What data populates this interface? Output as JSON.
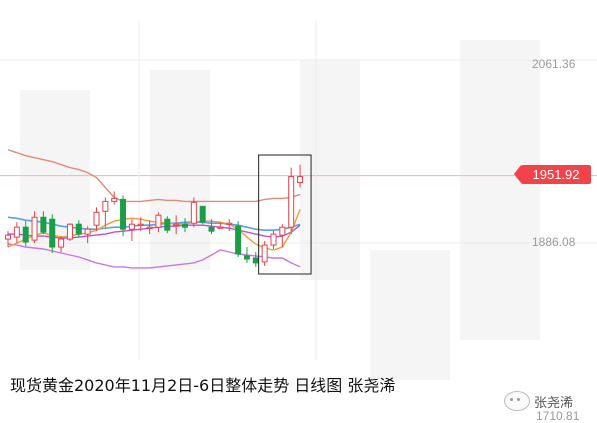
{
  "caption": "现货黄金2020年11月2日-6日整体走势 日线图 张尧浠",
  "watermark": "张尧浠",
  "colors": {
    "up": "#e8414b",
    "down": "#1a9e47",
    "upper_band": "#e28a77",
    "lower_band": "#c677e8",
    "ma_orange": "#f59a35",
    "ma_blue": "#5a9fe8",
    "ma_purple": "#c04fd6",
    "current_tag": "#f2424a",
    "highlight_box": "#222222"
  },
  "chart_data": {
    "type": "candlestick",
    "price_axis_labels": [
      "2061.36",
      "1951.92",
      "1886.08",
      "1710.81"
    ],
    "current_price": "1951.92",
    "ylim": [
      1710.81,
      2061.36
    ],
    "candles": [
      {
        "o": 1888,
        "h": 1896,
        "l": 1880,
        "c": 1892
      },
      {
        "o": 1890,
        "h": 1905,
        "l": 1884,
        "c": 1900
      },
      {
        "o": 1900,
        "h": 1906,
        "l": 1881,
        "c": 1885
      },
      {
        "o": 1887,
        "h": 1916,
        "l": 1884,
        "c": 1910
      },
      {
        "o": 1910,
        "h": 1916,
        "l": 1893,
        "c": 1895
      },
      {
        "o": 1908,
        "h": 1913,
        "l": 1874,
        "c": 1880
      },
      {
        "o": 1880,
        "h": 1891,
        "l": 1875,
        "c": 1888
      },
      {
        "o": 1888,
        "h": 1904,
        "l": 1886,
        "c": 1903
      },
      {
        "o": 1903,
        "h": 1907,
        "l": 1890,
        "c": 1893
      },
      {
        "o": 1893,
        "h": 1901,
        "l": 1884,
        "c": 1898
      },
      {
        "o": 1902,
        "h": 1920,
        "l": 1896,
        "c": 1915
      },
      {
        "o": 1916,
        "h": 1930,
        "l": 1900,
        "c": 1926
      },
      {
        "o": 1926,
        "h": 1936,
        "l": 1923,
        "c": 1929
      },
      {
        "o": 1928,
        "h": 1932,
        "l": 1891,
        "c": 1898
      },
      {
        "o": 1898,
        "h": 1908,
        "l": 1886,
        "c": 1903
      },
      {
        "o": 1903,
        "h": 1910,
        "l": 1896,
        "c": 1903
      },
      {
        "o": 1900,
        "h": 1907,
        "l": 1893,
        "c": 1900
      },
      {
        "o": 1900,
        "h": 1915,
        "l": 1895,
        "c": 1912
      },
      {
        "o": 1908,
        "h": 1911,
        "l": 1894,
        "c": 1897
      },
      {
        "o": 1902,
        "h": 1912,
        "l": 1893,
        "c": 1903
      },
      {
        "o": 1903,
        "h": 1909,
        "l": 1895,
        "c": 1900
      },
      {
        "o": 1904,
        "h": 1930,
        "l": 1900,
        "c": 1925
      },
      {
        "o": 1921,
        "h": 1921,
        "l": 1903,
        "c": 1905
      },
      {
        "o": 1900,
        "h": 1908,
        "l": 1893,
        "c": 1896
      },
      {
        "o": 1900,
        "h": 1905,
        "l": 1899,
        "c": 1900
      },
      {
        "o": 1903,
        "h": 1908,
        "l": 1896,
        "c": 1904
      },
      {
        "o": 1901,
        "h": 1906,
        "l": 1870,
        "c": 1873
      },
      {
        "o": 1871,
        "h": 1880,
        "l": 1864,
        "c": 1868
      },
      {
        "o": 1869,
        "h": 1875,
        "l": 1860,
        "c": 1864
      },
      {
        "o": 1865,
        "h": 1886,
        "l": 1861,
        "c": 1882
      },
      {
        "o": 1882,
        "h": 1896,
        "l": 1878,
        "c": 1893
      },
      {
        "o": 1892,
        "h": 1903,
        "l": 1880,
        "c": 1900
      },
      {
        "o": 1900,
        "h": 1960,
        "l": 1893,
        "c": 1951
      },
      {
        "o": 1945,
        "h": 1963,
        "l": 1940,
        "c": 1951
      }
    ],
    "upper_band": [
      1978,
      1975,
      1972,
      1970,
      1968,
      1966,
      1963,
      1960,
      1958,
      1955,
      1950,
      1940,
      1930,
      1926,
      1926,
      1926,
      1927,
      1928,
      1927,
      1927,
      1926,
      1926,
      1926,
      1926,
      1926,
      1926,
      1926,
      1926,
      1926,
      1928,
      1929,
      1929,
      1930,
      1933
    ],
    "lower_band": [
      1883,
      1882,
      1880,
      1879,
      1878,
      1876,
      1874,
      1872,
      1870,
      1867,
      1864,
      1862,
      1860,
      1860,
      1859,
      1859,
      1859,
      1860,
      1861,
      1862,
      1863,
      1864,
      1867,
      1872,
      1877,
      1875,
      1873,
      1872,
      1871,
      1870,
      1869,
      1869,
      1864,
      1860
    ],
    "ma_blue": [
      1910,
      1909,
      1907,
      1906,
      1905,
      1903,
      1901,
      1900,
      1899,
      1898,
      1898,
      1899,
      1900,
      1900,
      1901,
      1902,
      1902,
      1903,
      1904,
      1904,
      1905,
      1905,
      1905,
      1904,
      1904,
      1903,
      1902,
      1900,
      1898,
      1897,
      1897,
      1898,
      1900,
      1903
    ],
    "ma_orange": [
      1880,
      1884,
      1888,
      1892,
      1894,
      1892,
      1890,
      1891,
      1893,
      1894,
      1897,
      1902,
      1906,
      1908,
      1909,
      1908,
      1906,
      1905,
      1904,
      1903,
      1903,
      1905,
      1906,
      1906,
      1905,
      1903,
      1898,
      1890,
      1883,
      1879,
      1877,
      1880,
      1895,
      1918
    ],
    "ma_purple": [
      1893,
      1893,
      1892,
      1891,
      1891,
      1890,
      1889,
      1889,
      1890,
      1891,
      1892,
      1893,
      1895,
      1896,
      1897,
      1898,
      1899,
      1900,
      1901,
      1901,
      1902,
      1902,
      1902,
      1901,
      1900,
      1899,
      1897,
      1895,
      1893,
      1891,
      1890,
      1891,
      1895,
      1902
    ],
    "highlight_range": [
      29,
      33
    ],
    "ma_start_index": 6
  }
}
